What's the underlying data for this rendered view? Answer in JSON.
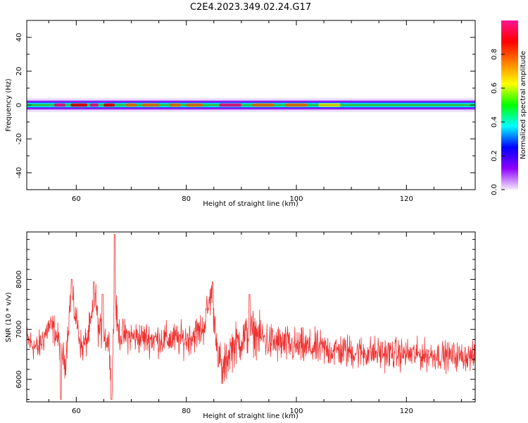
{
  "figure_title": "C2E4.2023.349.02.24.G17",
  "chart_data": [
    {
      "type": "heatmap",
      "xlabel": "Height of straight line (km)",
      "ylabel": "Frequency (Hz)",
      "xlim": [
        51,
        132.5
      ],
      "ylim": [
        -50,
        50
      ],
      "x_ticks": [
        60,
        80,
        100,
        120
      ],
      "y_ticks": [
        -40,
        -20,
        0,
        20,
        40
      ],
      "band_center_hz": 0,
      "band_halfwidth_hz": 3,
      "colorbar": {
        "label": "Normalized spectral amplitude",
        "range": [
          0,
          1
        ],
        "ticks": [
          0.0,
          0.2,
          0.4,
          0.6,
          0.8
        ],
        "colormap": [
          "#f5ecff",
          "#8f00ff",
          "#0000ff",
          "#00ffff",
          "#00ff00",
          "#ffff00",
          "#ff8000",
          "#ff0000",
          "#ff1493"
        ]
      },
      "peak_regions_km": [
        {
          "start": 56,
          "end": 58,
          "level": 0.95
        },
        {
          "start": 59,
          "end": 62,
          "level": 0.9
        },
        {
          "start": 62.5,
          "end": 64,
          "level": 0.95
        },
        {
          "start": 65,
          "end": 67,
          "level": 0.9
        },
        {
          "start": 69,
          "end": 71,
          "level": 0.8
        },
        {
          "start": 72,
          "end": 75,
          "level": 0.75
        },
        {
          "start": 77,
          "end": 79,
          "level": 0.8
        },
        {
          "start": 80,
          "end": 83,
          "level": 0.75
        },
        {
          "start": 86,
          "end": 90,
          "level": 0.95
        },
        {
          "start": 92,
          "end": 96,
          "level": 0.75
        },
        {
          "start": 98,
          "end": 102,
          "level": 0.7
        },
        {
          "start": 104,
          "end": 108,
          "level": 0.65
        }
      ]
    },
    {
      "type": "line",
      "xlabel": "Height of straight line (km)",
      "ylabel": "SNR (10 * v/v)",
      "xlim": [
        51,
        132.5
      ],
      "ylim": [
        5550,
        8950
      ],
      "x_ticks": [
        60,
        80,
        100,
        120
      ],
      "y_ticks": [
        6000,
        7000,
        8000
      ],
      "color": "#ee3333",
      "trend": {
        "x": [
          51,
          53,
          55,
          56,
          57,
          58,
          58.5,
          59,
          60,
          61,
          62,
          63,
          63.5,
          64,
          65,
          66,
          66.5,
          67,
          67.5,
          68,
          70,
          75,
          80,
          83,
          84.5,
          85.5,
          86.5,
          88,
          90,
          92,
          95,
          100,
          110,
          120,
          132.5
        ],
        "y": [
          6800,
          6600,
          7050,
          7000,
          6700,
          6300,
          7000,
          7700,
          7200,
          6600,
          6800,
          7300,
          7700,
          7000,
          6900,
          6700,
          6000,
          7800,
          7000,
          6900,
          6850,
          6800,
          6800,
          7000,
          7700,
          6900,
          6100,
          6600,
          6800,
          6950,
          6750,
          6650,
          6550,
          6500,
          6450
        ]
      },
      "noise_amplitude": [
        {
          "x": 51,
          "amp": 450
        },
        {
          "x": 80,
          "amp": 500
        },
        {
          "x": 90,
          "amp": 650
        },
        {
          "x": 100,
          "amp": 550
        },
        {
          "x": 132.5,
          "amp": 400
        }
      ],
      "spikes": [
        {
          "x": 57.2,
          "y": 5600
        },
        {
          "x": 59.2,
          "y": 8000
        },
        {
          "x": 63.2,
          "y": 7950
        },
        {
          "x": 64.8,
          "y": 7700
        },
        {
          "x": 66.4,
          "y": 5600
        },
        {
          "x": 67.0,
          "y": 8900
        },
        {
          "x": 84.8,
          "y": 7950
        },
        {
          "x": 85.8,
          "y": 6250
        },
        {
          "x": 91.5,
          "y": 7700
        }
      ]
    }
  ]
}
